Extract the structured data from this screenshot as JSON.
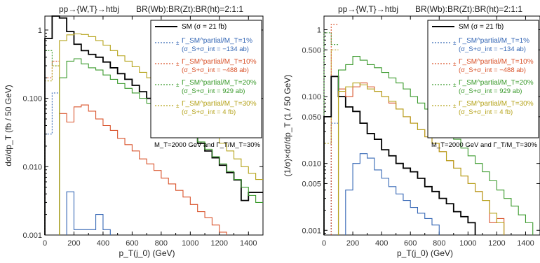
{
  "chart_data": [
    {
      "type": "step",
      "title_left": "pp→{W,T}→htbj",
      "title_right": "BR(Wb):BR(Zt):BR(ht)=2:1:1",
      "xlabel": "p_T(j_0) (GeV)",
      "ylabel": "dσ/dp_T  (fb / 50 GeV)",
      "xlim": [
        0,
        1500
      ],
      "ylim": [
        0.001,
        1.6
      ],
      "yscale": "log",
      "xticks": [
        "0",
        "200",
        "400",
        "600",
        "800",
        "1000",
        "1200",
        "1400"
      ],
      "yticks": [
        "0.001",
        "0.010",
        "0.100",
        "1"
      ],
      "grid": false,
      "legend_position": "top-right",
      "annotation": "M_T=2000 GeV and Γ_T/M_T=30%",
      "bin_edges": [
        0,
        50,
        100,
        150,
        200,
        250,
        300,
        350,
        400,
        450,
        500,
        550,
        600,
        650,
        700,
        750,
        800,
        850,
        900,
        950,
        1000,
        1050,
        1100,
        1150,
        1200,
        1250,
        1300,
        1350,
        1400,
        1450,
        1500
      ],
      "series": [
        {
          "name": "SM (σ = 21 fb)",
          "color": "#000000",
          "style": "solid",
          "values": [
            0.75,
            2.0,
            1.5,
            0.95,
            0.62,
            0.5,
            0.44,
            0.4,
            0.34,
            0.28,
            0.23,
            0.19,
            0.155,
            0.125,
            0.1,
            0.082,
            0.066,
            0.053,
            0.043,
            0.035,
            0.028,
            0.022,
            0.017,
            0.0135,
            0.0105,
            0.0082,
            0.0064,
            0.0032,
            0.0042,
            0.0042
          ]
        },
        {
          "name": "Γ_SM^partial/M_T=1%",
          "sub": "(σ_S+σ_int = −134 ab)",
          "color": "#3567b5",
          "style": "solid",
          "values": [
            null,
            null,
            null,
            0.0043,
            0.0012,
            0.0012,
            0.0012,
            0.002,
            0.0012,
            null,
            null,
            null,
            null,
            null,
            null,
            null,
            null,
            null,
            null,
            null,
            null,
            null,
            null,
            null,
            null,
            null,
            null,
            null,
            null,
            null
          ]
        },
        {
          "name": "Γ_SM^partial/M_T=10%",
          "sub": "(σ_S+σ_int = −488 ab)",
          "color": "#d9532b",
          "style": "solid",
          "values": [
            null,
            null,
            0.06,
            0.045,
            0.075,
            0.08,
            0.065,
            0.05,
            0.04,
            0.034,
            0.026,
            0.021,
            0.017,
            0.013,
            0.011,
            0.0088,
            0.0068,
            0.0056,
            0.0045,
            0.0036,
            0.0028,
            0.0022,
            0.0018,
            0.0014,
            0.0011,
            null,
            null,
            null,
            null,
            null
          ]
        },
        {
          "name": "Γ_SM^partial/M_T=20%",
          "sub": "(σ_S+σ_int = 929 ab)",
          "color": "#3a9a2c",
          "style": "solid",
          "values": [
            null,
            null,
            0.2,
            0.35,
            0.38,
            0.32,
            0.28,
            0.26,
            0.22,
            0.19,
            0.165,
            0.14,
            0.12,
            0.1,
            0.085,
            0.07,
            0.06,
            0.05,
            0.042,
            0.035,
            0.028,
            0.023,
            0.018,
            0.014,
            0.011,
            0.0085,
            0.0065,
            0.005,
            0.0038,
            0.003
          ]
        },
        {
          "name": "Γ_SM^partial/M_T=30%",
          "sub": "(σ_S+σ_int = 4 fb)",
          "color": "#b5a31a",
          "style": "solid",
          "values": [
            null,
            null,
            0.7,
            0.85,
            0.88,
            0.86,
            0.8,
            0.7,
            0.6,
            0.5,
            0.42,
            0.35,
            0.29,
            0.24,
            0.2,
            0.16,
            0.13,
            0.105,
            0.085,
            0.068,
            0.055,
            0.044,
            0.035,
            0.028,
            0.022,
            0.017,
            0.013,
            0.01,
            0.008,
            0.0065
          ]
        }
      ],
      "dotted_series": [
        {
          "color": "#3567b5",
          "values": [
            0.03,
            0.12
          ]
        },
        {
          "color": "#d9532b",
          "values": [
            0.2,
            0.35
          ]
        },
        {
          "color": "#3a9a2c",
          "values": [
            0.5,
            0.3
          ]
        },
        {
          "color": "#b5a31a",
          "values": [
            0.18,
            0.3
          ]
        }
      ]
    },
    {
      "type": "step",
      "title_left": "pp→{W,T}→htbj",
      "title_right": "BR(Wb):BR(Zt):BR(ht)=2:1:1",
      "xlabel": "p_T(j_0) (GeV)",
      "ylabel": "(1/σ)×dσ/dp_T  (1 / 50 GeV)",
      "xlim": [
        0,
        1500
      ],
      "ylim": [
        0.00085,
        1.6
      ],
      "yscale": "log",
      "xticks": [
        "0",
        "200",
        "400",
        "600",
        "800",
        "1000",
        "1200",
        "1400"
      ],
      "yticks": [
        "0.001",
        "0.005",
        "0.010",
        "0.050",
        "0.100",
        "0.500",
        "1"
      ],
      "grid": false,
      "legend_position": "top-right",
      "annotation": "M_T=2000 GeV and Γ_T/M_T=30%",
      "bin_edges": [
        0,
        50,
        100,
        150,
        200,
        250,
        300,
        350,
        400,
        450,
        500,
        550,
        600,
        650,
        700,
        750,
        800,
        850,
        900,
        950,
        1000,
        1050,
        1100,
        1150,
        1200,
        1250,
        1300,
        1350,
        1400,
        1450,
        1500
      ],
      "series": [
        {
          "name": "SM (σ = 21 fb)",
          "color": "#000000",
          "style": "solid",
          "values": [
            0.05,
            0.2,
            0.1,
            0.07,
            0.06,
            0.04,
            0.028,
            0.023,
            0.016,
            0.013,
            0.01,
            0.0085,
            0.0075,
            0.006,
            0.0045,
            0.0038,
            0.003,
            0.0025,
            0.0019,
            0.0016,
            0.0013,
            null,
            null,
            null,
            null,
            null,
            null,
            null,
            null,
            null
          ]
        },
        {
          "name": "Γ_SM^partial/M_T=1%",
          "sub": "(σ_S+σ_int = −134 ab)",
          "color": "#3567b5",
          "style": "solid",
          "values": [
            null,
            null,
            null,
            0.004,
            0.01,
            0.014,
            0.012,
            0.008,
            0.006,
            0.0045,
            0.0035,
            0.0028,
            0.0022,
            0.0018,
            0.0015,
            0.0012,
            null,
            null,
            null,
            null,
            null,
            null,
            null,
            null,
            null,
            null,
            null,
            null,
            null,
            null
          ]
        },
        {
          "name": "Γ_SM^partial/M_T=10%",
          "sub": "(σ_S+σ_int = −488 ab)",
          "color": "#d9532b",
          "style": "solid",
          "values": [
            null,
            null,
            0.13,
            0.1,
            0.14,
            0.16,
            0.14,
            0.12,
            0.1,
            0.08,
            0.065,
            0.05,
            0.04,
            0.032,
            0.025,
            0.02,
            0.015,
            0.011,
            0.0085,
            0.0065,
            0.005,
            0.0038,
            0.0028,
            0.0013,
            0.0015,
            null,
            null,
            null,
            null,
            null
          ]
        },
        {
          "name": "Γ_SM^partial/M_T=20%",
          "sub": "(σ_S+σ_int = 929 ab)",
          "color": "#3a9a2c",
          "style": "solid",
          "values": [
            null,
            null,
            0.25,
            0.3,
            0.4,
            0.35,
            0.3,
            0.27,
            0.23,
            0.19,
            0.16,
            0.13,
            0.1,
            0.08,
            0.065,
            0.05,
            0.04,
            0.03,
            0.023,
            0.017,
            0.013,
            0.01,
            0.0075,
            0.0055,
            0.004,
            0.003,
            0.0023,
            0.0017,
            0.0013,
            null
          ]
        },
        {
          "name": "Γ_SM^partial/M_T=30%",
          "sub": "(σ_S+σ_int = 4 fb)",
          "color": "#b5a31a",
          "style": "solid",
          "values": [
            null,
            null,
            0.12,
            0.14,
            0.16,
            0.15,
            0.13,
            0.12,
            0.1,
            0.085,
            0.065,
            0.05,
            0.04,
            0.032,
            0.025,
            0.02,
            0.015,
            0.011,
            0.0085,
            0.0065,
            0.005,
            0.0038,
            0.0028,
            0.0018,
            0.0013,
            null,
            null,
            null,
            null,
            null
          ]
        }
      ],
      "dotted_series": [
        {
          "color": "#3567b5",
          "values": [
            null,
            0.04
          ]
        },
        {
          "color": "#d9532b",
          "values": [
            null,
            1.2
          ]
        },
        {
          "color": "#3a9a2c",
          "values": [
            0.9,
            0.6
          ]
        },
        {
          "color": "#b5a31a",
          "values": [
            0.02,
            0.5
          ]
        }
      ]
    }
  ]
}
